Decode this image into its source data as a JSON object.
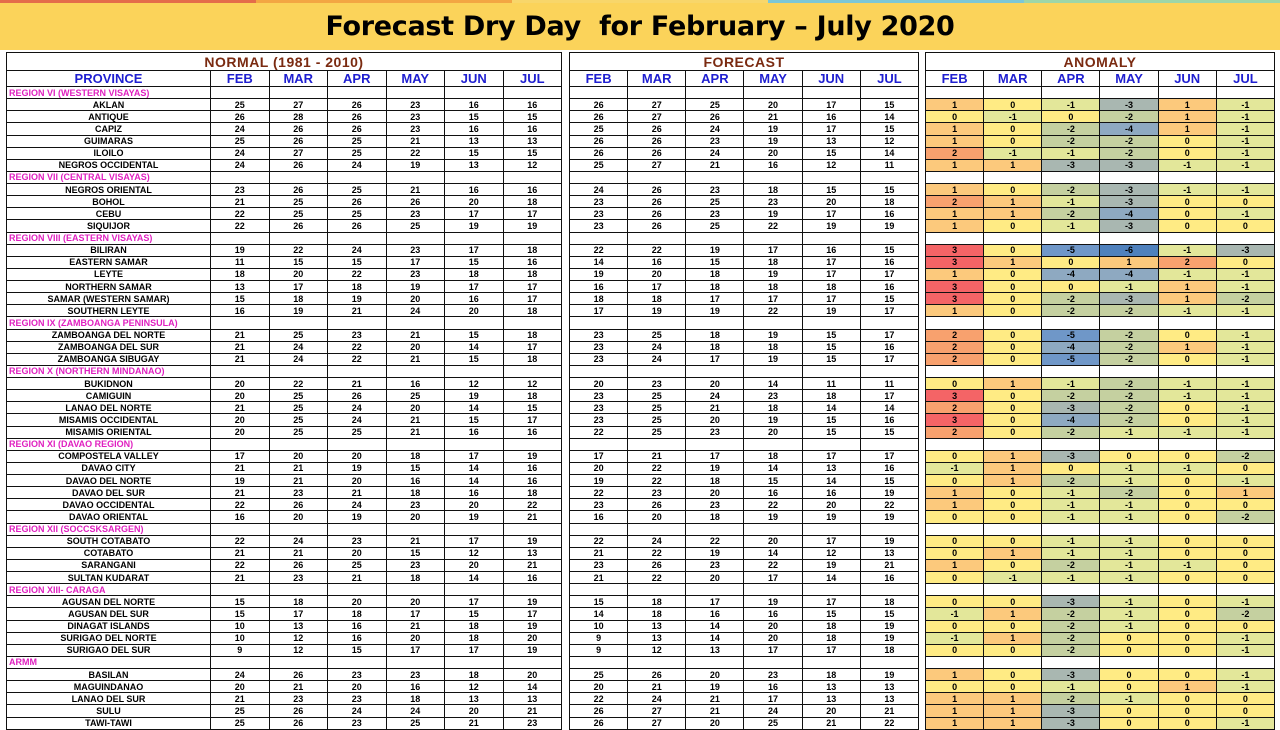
{
  "title": "Forecast Dry Day  for February – July 2020",
  "colors": {
    "stripe": [
      "#e46c4a",
      "#f3a643",
      "#f8d66a",
      "#7cc7d6",
      "#9dd6a8"
    ],
    "title_bg": "#fbd35a",
    "anomaly": {
      "-6": "#4f81bd",
      "-5": "#6f97c8",
      "-4": "#8ea9c1",
      "-3": "#a9b7b1",
      "-2": "#c5d0a0",
      "-1": "#e3e79a",
      "0": "#ffeb84",
      "1": "#fcc97c",
      "2": "#f8a16e",
      "3": "#f46466"
    }
  },
  "headers": {
    "normal": "NORMAL (1981 - 2010)",
    "forecast": "FORECAST",
    "anomaly": "ANOMALY",
    "province": "PROVINCE",
    "months": [
      "FEB",
      "MAR",
      "APR",
      "MAY",
      "JUN",
      "JUL"
    ]
  },
  "rows": [
    {
      "region": "REGION VI (WESTERN VISAYAS)"
    },
    {
      "province": "AKLAN",
      "normal": [
        25,
        27,
        26,
        23,
        16,
        16
      ],
      "forecast": [
        26,
        27,
        25,
        20,
        17,
        15
      ],
      "anomaly": [
        1,
        0,
        -1,
        -3,
        1,
        -1
      ]
    },
    {
      "province": "ANTIQUE",
      "normal": [
        26,
        28,
        26,
        23,
        15,
        15
      ],
      "forecast": [
        26,
        27,
        26,
        21,
        16,
        14
      ],
      "anomaly": [
        0,
        -1,
        0,
        -2,
        1,
        -1
      ]
    },
    {
      "province": "CAPIZ",
      "normal": [
        24,
        26,
        26,
        23,
        16,
        16
      ],
      "forecast": [
        25,
        26,
        24,
        19,
        17,
        15
      ],
      "anomaly": [
        1,
        0,
        -2,
        -4,
        1,
        -1
      ]
    },
    {
      "province": "GUIMARAS",
      "normal": [
        25,
        26,
        25,
        21,
        13,
        13
      ],
      "forecast": [
        26,
        26,
        23,
        19,
        13,
        12
      ],
      "anomaly": [
        1,
        0,
        -2,
        -2,
        0,
        -1
      ]
    },
    {
      "province": "ILOILO",
      "normal": [
        24,
        27,
        25,
        22,
        15,
        15
      ],
      "forecast": [
        26,
        26,
        24,
        20,
        15,
        14
      ],
      "anomaly": [
        2,
        -1,
        -1,
        -2,
        0,
        -1
      ]
    },
    {
      "province": "NEGROS OCCIDENTAL",
      "normal": [
        24,
        26,
        24,
        19,
        13,
        12
      ],
      "forecast": [
        25,
        27,
        21,
        16,
        12,
        11
      ],
      "anomaly": [
        1,
        1,
        -3,
        -3,
        -1,
        -1
      ]
    },
    {
      "region": "REGION VII (CENTRAL VISAYAS)"
    },
    {
      "province": "NEGROS ORIENTAL",
      "normal": [
        23,
        26,
        25,
        21,
        16,
        16
      ],
      "forecast": [
        24,
        26,
        23,
        18,
        15,
        15
      ],
      "anomaly": [
        1,
        0,
        -2,
        -3,
        -1,
        -1
      ]
    },
    {
      "province": "BOHOL",
      "normal": [
        21,
        25,
        26,
        26,
        20,
        18
      ],
      "forecast": [
        23,
        26,
        25,
        23,
        20,
        18
      ],
      "anomaly": [
        2,
        1,
        -1,
        -3,
        0,
        0
      ]
    },
    {
      "province": "CEBU",
      "normal": [
        22,
        25,
        25,
        23,
        17,
        17
      ],
      "forecast": [
        23,
        26,
        23,
        19,
        17,
        16
      ],
      "anomaly": [
        1,
        1,
        -2,
        -4,
        0,
        -1
      ]
    },
    {
      "province": "SIQUIJOR",
      "normal": [
        22,
        26,
        26,
        25,
        19,
        19
      ],
      "forecast": [
        23,
        26,
        25,
        22,
        19,
        19
      ],
      "anomaly": [
        1,
        0,
        -1,
        -3,
        0,
        0
      ]
    },
    {
      "region": "REGION VIII (EASTERN  VISAYAS)"
    },
    {
      "province": "BILIRAN",
      "normal": [
        19,
        22,
        24,
        23,
        17,
        18
      ],
      "forecast": [
        22,
        22,
        19,
        17,
        16,
        15
      ],
      "anomaly": [
        3,
        0,
        -5,
        -6,
        -1,
        -3
      ]
    },
    {
      "province": "EASTERN SAMAR",
      "normal": [
        11,
        15,
        15,
        17,
        15,
        16
      ],
      "forecast": [
        14,
        16,
        15,
        18,
        17,
        16
      ],
      "anomaly": [
        3,
        1,
        0,
        1,
        2,
        0
      ]
    },
    {
      "province": "LEYTE",
      "normal": [
        18,
        20,
        22,
        23,
        18,
        18
      ],
      "forecast": [
        19,
        20,
        18,
        19,
        17,
        17
      ],
      "anomaly": [
        1,
        0,
        -4,
        -4,
        -1,
        -1
      ]
    },
    {
      "province": "NORTHERN SAMAR",
      "normal": [
        13,
        17,
        18,
        19,
        17,
        17
      ],
      "forecast": [
        16,
        17,
        18,
        18,
        18,
        16
      ],
      "anomaly": [
        3,
        0,
        0,
        -1,
        1,
        -1
      ]
    },
    {
      "province": "SAMAR (WESTERN SAMAR)",
      "normal": [
        15,
        18,
        19,
        20,
        16,
        17
      ],
      "forecast": [
        18,
        18,
        17,
        17,
        17,
        15
      ],
      "anomaly": [
        3,
        0,
        -2,
        -3,
        1,
        -2
      ]
    },
    {
      "province": "SOUTHERN LEYTE",
      "normal": [
        16,
        19,
        21,
        24,
        20,
        18
      ],
      "forecast": [
        17,
        19,
        19,
        22,
        19,
        17
      ],
      "anomaly": [
        1,
        0,
        -2,
        -2,
        -1,
        -1
      ]
    },
    {
      "region": "REGION IX (ZAMBOANGA PENINSULA)"
    },
    {
      "province": "ZAMBOANGA DEL NORTE",
      "normal": [
        21,
        25,
        23,
        21,
        15,
        18
      ],
      "forecast": [
        23,
        25,
        18,
        19,
        15,
        17
      ],
      "anomaly": [
        2,
        0,
        -5,
        -2,
        0,
        -1
      ]
    },
    {
      "province": "ZAMBOANGA DEL SUR",
      "normal": [
        21,
        24,
        22,
        20,
        14,
        17
      ],
      "forecast": [
        23,
        24,
        18,
        18,
        15,
        16
      ],
      "anomaly": [
        2,
        0,
        -4,
        -2,
        1,
        -1
      ]
    },
    {
      "province": "ZAMBOANGA SIBUGAY",
      "normal": [
        21,
        24,
        22,
        21,
        15,
        18
      ],
      "forecast": [
        23,
        24,
        17,
        19,
        15,
        17
      ],
      "anomaly": [
        2,
        0,
        -5,
        -2,
        0,
        -1
      ]
    },
    {
      "region": "REGION X (NORTHERN MINDANAO)"
    },
    {
      "province": "BUKIDNON",
      "normal": [
        20,
        22,
        21,
        16,
        12,
        12
      ],
      "forecast": [
        20,
        23,
        20,
        14,
        11,
        11
      ],
      "anomaly": [
        0,
        1,
        -1,
        -2,
        -1,
        -1
      ]
    },
    {
      "province": "CAMIGUIN",
      "normal": [
        20,
        25,
        26,
        25,
        19,
        18
      ],
      "forecast": [
        23,
        25,
        24,
        23,
        18,
        17
      ],
      "anomaly": [
        3,
        0,
        -2,
        -2,
        -1,
        -1
      ]
    },
    {
      "province": "LANAO DEL NORTE",
      "normal": [
        21,
        25,
        24,
        20,
        14,
        15
      ],
      "forecast": [
        23,
        25,
        21,
        18,
        14,
        14
      ],
      "anomaly": [
        2,
        0,
        -3,
        -2,
        0,
        -1
      ]
    },
    {
      "province": "MISAMIS OCCIDENTAL",
      "normal": [
        20,
        25,
        24,
        21,
        15,
        17
      ],
      "forecast": [
        23,
        25,
        20,
        19,
        15,
        16
      ],
      "anomaly": [
        3,
        0,
        -4,
        -2,
        0,
        -1
      ]
    },
    {
      "province": "MISAMIS ORIENTAL",
      "normal": [
        20,
        25,
        25,
        21,
        16,
        16
      ],
      "forecast": [
        22,
        25,
        23,
        20,
        15,
        15
      ],
      "anomaly": [
        2,
        0,
        -2,
        -1,
        -1,
        -1
      ]
    },
    {
      "region": "REGION XI (DAVAO REGION)"
    },
    {
      "province": "COMPOSTELA VALLEY",
      "normal": [
        17,
        20,
        20,
        18,
        17,
        19
      ],
      "forecast": [
        17,
        21,
        17,
        18,
        17,
        17
      ],
      "anomaly": [
        0,
        1,
        -3,
        0,
        0,
        -2
      ]
    },
    {
      "province": "DAVAO CITY",
      "normal": [
        21,
        21,
        19,
        15,
        14,
        16
      ],
      "forecast": [
        20,
        22,
        19,
        14,
        13,
        16
      ],
      "anomaly": [
        -1,
        1,
        0,
        -1,
        -1,
        0
      ]
    },
    {
      "province": "DAVAO DEL NORTE",
      "normal": [
        19,
        21,
        20,
        16,
        14,
        16
      ],
      "forecast": [
        19,
        22,
        18,
        15,
        14,
        15
      ],
      "anomaly": [
        0,
        1,
        -2,
        -1,
        0,
        -1
      ]
    },
    {
      "province": "DAVAO DEL SUR",
      "normal": [
        21,
        23,
        21,
        18,
        16,
        18
      ],
      "forecast": [
        22,
        23,
        20,
        16,
        16,
        19
      ],
      "anomaly": [
        1,
        0,
        -1,
        -2,
        0,
        1
      ]
    },
    {
      "province": "DAVAO OCCIDENTAL",
      "normal": [
        22,
        26,
        24,
        23,
        20,
        22
      ],
      "forecast": [
        23,
        26,
        23,
        22,
        20,
        22
      ],
      "anomaly": [
        1,
        0,
        -1,
        -1,
        0,
        0
      ]
    },
    {
      "province": "DAVAO ORIENTAL",
      "normal": [
        16,
        20,
        19,
        20,
        19,
        21
      ],
      "forecast": [
        16,
        20,
        18,
        19,
        19,
        19
      ],
      "anomaly": [
        0,
        0,
        -1,
        -1,
        0,
        -2
      ]
    },
    {
      "region": "REGION XII (SOCCSKSARGEN)"
    },
    {
      "province": "SOUTH COTABATO",
      "normal": [
        22,
        24,
        23,
        21,
        17,
        19
      ],
      "forecast": [
        22,
        24,
        22,
        20,
        17,
        19
      ],
      "anomaly": [
        0,
        0,
        -1,
        -1,
        0,
        0
      ]
    },
    {
      "province": "COTABATO",
      "normal": [
        21,
        21,
        20,
        15,
        12,
        13
      ],
      "forecast": [
        21,
        22,
        19,
        14,
        12,
        13
      ],
      "anomaly": [
        0,
        1,
        -1,
        -1,
        0,
        0
      ]
    },
    {
      "province": "SARANGANI",
      "normal": [
        22,
        26,
        25,
        23,
        20,
        21
      ],
      "forecast": [
        23,
        26,
        23,
        22,
        19,
        21
      ],
      "anomaly": [
        1,
        0,
        -2,
        -1,
        -1,
        0
      ]
    },
    {
      "province": "SULTAN KUDARAT",
      "normal": [
        21,
        23,
        21,
        18,
        14,
        16
      ],
      "forecast": [
        21,
        22,
        20,
        17,
        14,
        16
      ],
      "anomaly": [
        0,
        -1,
        -1,
        -1,
        0,
        0
      ]
    },
    {
      "region": "REGION XIII- CARAGA"
    },
    {
      "province": "AGUSAN DEL NORTE",
      "normal": [
        15,
        18,
        20,
        20,
        17,
        19
      ],
      "forecast": [
        15,
        18,
        17,
        19,
        17,
        18
      ],
      "anomaly": [
        0,
        0,
        -3,
        -1,
        0,
        -1
      ]
    },
    {
      "province": "AGUSAN DEL SUR",
      "normal": [
        15,
        17,
        18,
        17,
        15,
        17
      ],
      "forecast": [
        14,
        18,
        16,
        16,
        15,
        15
      ],
      "anomaly": [
        -1,
        1,
        -2,
        -1,
        0,
        -2
      ]
    },
    {
      "province": "DINAGAT ISLANDS",
      "normal": [
        10,
        13,
        16,
        21,
        18,
        19
      ],
      "forecast": [
        10,
        13,
        14,
        20,
        18,
        19
      ],
      "anomaly": [
        0,
        0,
        -2,
        -1,
        0,
        0
      ]
    },
    {
      "province": "SURIGAO DEL NORTE",
      "normal": [
        10,
        12,
        16,
        20,
        18,
        20
      ],
      "forecast": [
        9,
        13,
        14,
        20,
        18,
        19
      ],
      "anomaly": [
        -1,
        1,
        -2,
        0,
        0,
        -1
      ]
    },
    {
      "province": "SURIGAO DEL SUR",
      "normal": [
        9,
        12,
        15,
        17,
        17,
        19
      ],
      "forecast": [
        9,
        12,
        13,
        17,
        17,
        18
      ],
      "anomaly": [
        0,
        0,
        -2,
        0,
        0,
        -1
      ]
    },
    {
      "region": "ARMM"
    },
    {
      "province": "BASILAN",
      "normal": [
        24,
        26,
        23,
        23,
        18,
        20
      ],
      "forecast": [
        25,
        26,
        20,
        23,
        18,
        19
      ],
      "anomaly": [
        1,
        0,
        -3,
        0,
        0,
        -1
      ]
    },
    {
      "province": "MAGUINDANAO",
      "normal": [
        20,
        21,
        20,
        16,
        12,
        14
      ],
      "forecast": [
        20,
        21,
        19,
        16,
        13,
        13
      ],
      "anomaly": [
        0,
        0,
        -1,
        0,
        1,
        -1
      ]
    },
    {
      "province": "LANAO DEL SUR",
      "normal": [
        21,
        23,
        23,
        18,
        13,
        13
      ],
      "forecast": [
        22,
        24,
        21,
        17,
        13,
        13
      ],
      "anomaly": [
        1,
        1,
        -2,
        -1,
        0,
        0
      ]
    },
    {
      "province": "SULU",
      "normal": [
        25,
        26,
        24,
        24,
        20,
        21
      ],
      "forecast": [
        26,
        27,
        21,
        24,
        20,
        21
      ],
      "anomaly": [
        1,
        1,
        -3,
        0,
        0,
        0
      ]
    },
    {
      "province": "TAWI-TAWI",
      "normal": [
        25,
        26,
        23,
        25,
        21,
        23
      ],
      "forecast": [
        26,
        27,
        20,
        25,
        21,
        22
      ],
      "anomaly": [
        1,
        1,
        -3,
        0,
        0,
        -1
      ]
    }
  ]
}
